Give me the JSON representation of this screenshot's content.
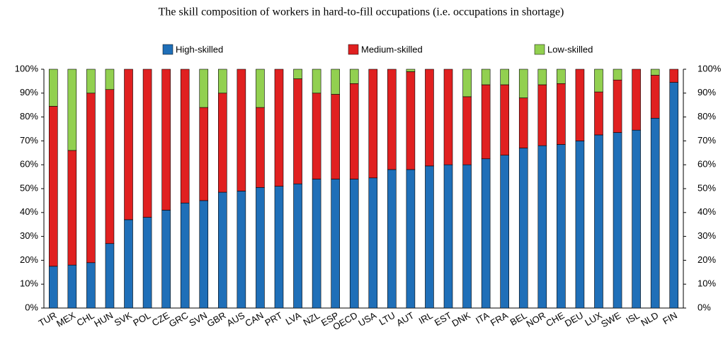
{
  "chart_data": {
    "type": "stacked_bar",
    "title": "The skill composition of workers in hard-to-fill occupations (i.e. occupations in shortage)",
    "categories": [
      "TUR",
      "MEX",
      "CHL",
      "HUN",
      "SVK",
      "POL",
      "CZE",
      "GRC",
      "SVN",
      "GBR",
      "AUS",
      "CAN",
      "PRT",
      "LVA",
      "NZL",
      "ESP",
      "OECD",
      "USA",
      "LTU",
      "AUT",
      "IRL",
      "EST",
      "DNK",
      "ITA",
      "FRA",
      "BEL",
      "NOR",
      "CHE",
      "DEU",
      "LUX",
      "SWE",
      "ISL",
      "NLD",
      "FIN"
    ],
    "series": [
      {
        "name": "High-skilled",
        "color": "#1f6fb8",
        "values": [
          17.5,
          18,
          19,
          27,
          37,
          38,
          41,
          44,
          45,
          48.5,
          49,
          50.5,
          51,
          52,
          54,
          54,
          54,
          54.5,
          58,
          58,
          59.5,
          60,
          60,
          62.5,
          64,
          67,
          68,
          68.5,
          70,
          72.5,
          73.5,
          74.5,
          79.5,
          94.5
        ]
      },
      {
        "name": "Medium-skilled",
        "color": "#e02020",
        "values": [
          67,
          48,
          71,
          64.5,
          63,
          62,
          59,
          56,
          39,
          41.5,
          51,
          33.5,
          49,
          44,
          36,
          35.5,
          40,
          45.5,
          42,
          41,
          40.5,
          40,
          28.5,
          31,
          29.5,
          21,
          25.5,
          25.5,
          30,
          18,
          22,
          25.5,
          18,
          5.5
        ]
      },
      {
        "name": "Low-skilled",
        "color": "#92d050",
        "values": [
          15.5,
          34,
          10,
          8.5,
          0,
          0,
          0,
          0,
          16,
          10,
          0,
          16,
          0,
          4,
          10,
          10.5,
          6,
          0,
          0,
          1,
          0,
          0,
          11.5,
          6.5,
          6.5,
          12,
          6.5,
          6,
          0,
          9.5,
          4.5,
          0,
          2.5,
          0
        ]
      }
    ],
    "ylim": [
      0,
      100
    ],
    "yticks": [
      {
        "value": 0,
        "label": "0%"
      },
      {
        "value": 10,
        "label": "10%"
      },
      {
        "value": 20,
        "label": "20%"
      },
      {
        "value": 30,
        "label": "30%"
      },
      {
        "value": 40,
        "label": "40%"
      },
      {
        "value": 50,
        "label": "50%"
      },
      {
        "value": 60,
        "label": "60%"
      },
      {
        "value": 70,
        "label": "70%"
      },
      {
        "value": 80,
        "label": "80%"
      },
      {
        "value": 90,
        "label": "90%"
      },
      {
        "value": 100,
        "label": "100%"
      }
    ],
    "y2lim": [
      0,
      100
    ],
    "y2ticks": [
      {
        "value": 0,
        "label": "0%"
      },
      {
        "value": 10,
        "label": "10%"
      },
      {
        "value": 20,
        "label": "20%"
      },
      {
        "value": 30,
        "label": "30%"
      },
      {
        "value": 40,
        "label": "40%"
      },
      {
        "value": 50,
        "label": "50%"
      },
      {
        "value": 60,
        "label": "60%"
      },
      {
        "value": 70,
        "label": "70%"
      },
      {
        "value": 80,
        "label": "80%"
      },
      {
        "value": 90,
        "label": "90%"
      },
      {
        "value": 100,
        "label": "100%"
      }
    ],
    "legend": "top"
  }
}
